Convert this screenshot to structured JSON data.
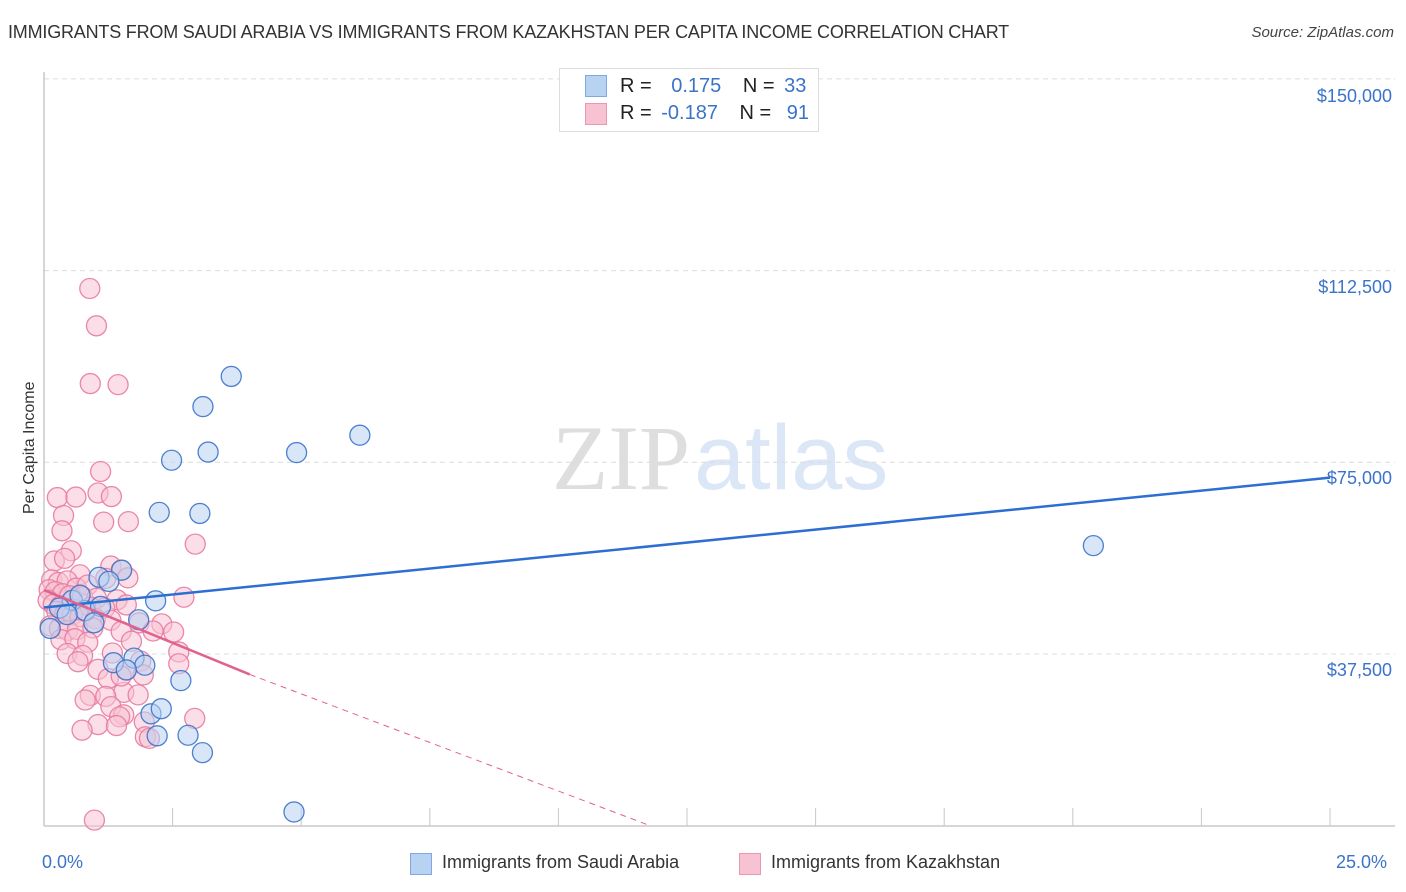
{
  "header": {
    "title": "IMMIGRANTS FROM SAUDI ARABIA VS IMMIGRANTS FROM KAZAKHSTAN PER CAPITA INCOME CORRELATION CHART",
    "source": "Source: ZipAtlas.com"
  },
  "legend_top": {
    "series1": {
      "r_label": "R =",
      "r_value": "0.175",
      "n_label": "N =",
      "n_value": "33"
    },
    "series2": {
      "r_label": "R =",
      "r_value": "-0.187",
      "n_label": "N =",
      "n_value": "91"
    }
  },
  "legend_bottom": {
    "series1": "Immigrants from Saudi Arabia",
    "series2": "Immigrants from Kazakhstan"
  },
  "axes": {
    "ylabel": "Per Capita Income",
    "yticks": [
      "$150,000",
      "$112,500",
      "$75,000",
      "$37,500"
    ],
    "xticks": [
      "0.0%",
      "25.0%"
    ]
  },
  "watermark": {
    "zip": "ZIP",
    "atlas": "atlas"
  },
  "colors": {
    "blue": "#3b73c9",
    "blue_fill": "#b8d2f2",
    "blue_line": "#2d6fd1",
    "pink": "#e87ba0",
    "pink_fill": "#f7c3d3",
    "pink_line": "#e0628e"
  },
  "chart_data": {
    "type": "scatter",
    "title": "IMMIGRANTS FROM SAUDI ARABIA VS IMMIGRANTS FROM KAZAKHSTAN PER CAPITA INCOME CORRELATION CHART",
    "xlabel": "",
    "ylabel": "Per Capita Income",
    "xlim": [
      0,
      25
    ],
    "ylim": [
      3850,
      153500
    ],
    "x_unit": "%",
    "yticks": [
      37500,
      75000,
      112500,
      150000
    ],
    "grid": true,
    "legend_position": "bottom",
    "series": [
      {
        "name": "Immigrants from Saudi Arabia",
        "R": 0.175,
        "N": 33,
        "color": "#3b73c9",
        "trendline": {
          "x": [
            0,
            25
          ],
          "y": [
            46600,
            72000
          ]
        },
        "points": [
          [
            3.64,
            91800
          ],
          [
            3.09,
            85900
          ],
          [
            3.19,
            77000
          ],
          [
            2.48,
            75400
          ],
          [
            4.91,
            76900
          ],
          [
            6.14,
            80300
          ],
          [
            20.4,
            58700
          ],
          [
            2.17,
            47900
          ],
          [
            1.51,
            53900
          ],
          [
            3.03,
            65000
          ],
          [
            2.24,
            65200
          ],
          [
            1.07,
            52500
          ],
          [
            1.26,
            51700
          ],
          [
            0.55,
            48000
          ],
          [
            0.8,
            46000
          ],
          [
            1.1,
            46800
          ],
          [
            0.3,
            46500
          ],
          [
            0.45,
            45200
          ],
          [
            0.7,
            49000
          ],
          [
            1.84,
            44200
          ],
          [
            0.97,
            43600
          ],
          [
            0.12,
            42500
          ],
          [
            1.75,
            36700
          ],
          [
            1.96,
            35300
          ],
          [
            2.66,
            32300
          ],
          [
            2.08,
            25800
          ],
          [
            2.28,
            26800
          ],
          [
            2.2,
            21500
          ],
          [
            2.8,
            21600
          ],
          [
            3.08,
            18200
          ],
          [
            4.86,
            6600
          ],
          [
            1.35,
            35800
          ],
          [
            1.6,
            34400
          ]
        ]
      },
      {
        "name": "Immigrants from Kazakhstan",
        "R": -0.187,
        "N": 91,
        "color": "#e87ba0",
        "trendline": {
          "x": [
            0,
            4.0
          ],
          "y": [
            50000,
            33500
          ],
          "dashed_extension": {
            "x": [
              4.0,
              11.8
            ],
            "y": [
              33500,
              3850
            ]
          }
        },
        "points": [
          [
            0.89,
            109000
          ],
          [
            1.02,
            101700
          ],
          [
            0.9,
            90400
          ],
          [
            1.44,
            90200
          ],
          [
            1.1,
            73200
          ],
          [
            1.05,
            69000
          ],
          [
            1.31,
            68300
          ],
          [
            0.26,
            68100
          ],
          [
            0.62,
            68200
          ],
          [
            0.38,
            64600
          ],
          [
            1.16,
            63300
          ],
          [
            0.35,
            61600
          ],
          [
            1.64,
            63400
          ],
          [
            2.94,
            59000
          ],
          [
            0.53,
            57700
          ],
          [
            0.2,
            55700
          ],
          [
            0.4,
            56200
          ],
          [
            1.3,
            54700
          ],
          [
            1.5,
            53900
          ],
          [
            0.7,
            53000
          ],
          [
            1.2,
            52300
          ],
          [
            1.63,
            52400
          ],
          [
            0.15,
            52000
          ],
          [
            0.28,
            51500
          ],
          [
            0.45,
            51800
          ],
          [
            0.63,
            50400
          ],
          [
            0.85,
            51000
          ],
          [
            0.1,
            50100
          ],
          [
            0.22,
            49700
          ],
          [
            0.36,
            49300
          ],
          [
            0.5,
            48900
          ],
          [
            0.75,
            48700
          ],
          [
            1.02,
            48400
          ],
          [
            1.42,
            48100
          ],
          [
            2.72,
            48600
          ],
          [
            0.08,
            48000
          ],
          [
            0.18,
            47200
          ],
          [
            0.32,
            46900
          ],
          [
            0.48,
            46400
          ],
          [
            0.6,
            46200
          ],
          [
            0.9,
            46700
          ],
          [
            1.18,
            46500
          ],
          [
            1.6,
            47100
          ],
          [
            0.25,
            45800
          ],
          [
            0.4,
            45300
          ],
          [
            0.55,
            45100
          ],
          [
            0.7,
            44800
          ],
          [
            1.0,
            44400
          ],
          [
            1.3,
            44100
          ],
          [
            1.85,
            43600
          ],
          [
            2.29,
            43400
          ],
          [
            0.12,
            43000
          ],
          [
            0.3,
            42500
          ],
          [
            0.46,
            42100
          ],
          [
            0.65,
            42300
          ],
          [
            0.95,
            42600
          ],
          [
            1.5,
            41900
          ],
          [
            2.12,
            42000
          ],
          [
            2.52,
            41800
          ],
          [
            0.33,
            40300
          ],
          [
            0.6,
            40500
          ],
          [
            0.85,
            39800
          ],
          [
            1.7,
            40000
          ],
          [
            0.45,
            37600
          ],
          [
            0.75,
            37200
          ],
          [
            1.33,
            37700
          ],
          [
            2.62,
            37900
          ],
          [
            1.88,
            36100
          ],
          [
            2.62,
            35600
          ],
          [
            0.66,
            36000
          ],
          [
            1.05,
            34500
          ],
          [
            1.6,
            34300
          ],
          [
            1.25,
            32700
          ],
          [
            1.55,
            30000
          ],
          [
            0.9,
            29400
          ],
          [
            1.2,
            29200
          ],
          [
            1.83,
            29500
          ],
          [
            0.8,
            28500
          ],
          [
            1.3,
            27200
          ],
          [
            1.55,
            25600
          ],
          [
            1.47,
            25200
          ],
          [
            1.95,
            24200
          ],
          [
            2.93,
            24900
          ],
          [
            1.05,
            23700
          ],
          [
            1.41,
            23500
          ],
          [
            0.74,
            22600
          ],
          [
            1.97,
            21300
          ],
          [
            2.05,
            21000
          ],
          [
            1.5,
            33200
          ],
          [
            1.93,
            33400
          ],
          [
            0.98,
            5000
          ]
        ]
      }
    ]
  }
}
